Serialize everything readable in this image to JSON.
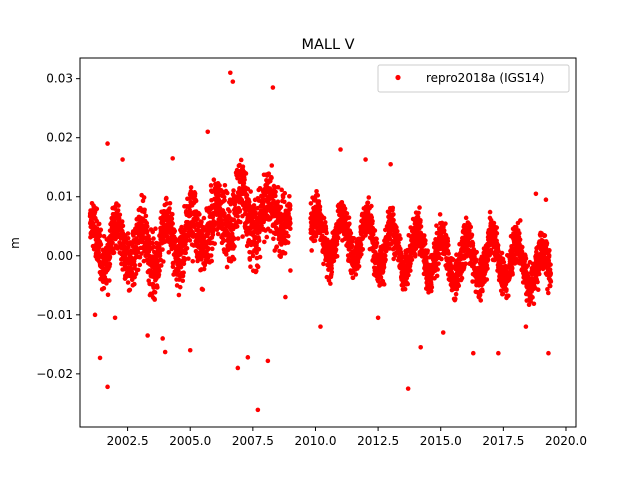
{
  "chart_data": {
    "type": "scatter",
    "title": "MALL V",
    "xlabel": "",
    "ylabel": "m",
    "xlim": [
      2000.6,
      2020.4
    ],
    "ylim": [
      -0.029,
      0.0335
    ],
    "xticks": [
      2002.5,
      2005.0,
      2007.5,
      2010.0,
      2012.5,
      2015.0,
      2017.5,
      2020.0
    ],
    "xtick_labels": [
      "2002.5",
      "2005.0",
      "2007.5",
      "2010.0",
      "2012.5",
      "2015.0",
      "2017.5",
      "2020.0"
    ],
    "yticks": [
      -0.02,
      -0.01,
      0.0,
      0.01,
      0.02,
      0.03
    ],
    "ytick_labels": [
      "−0.02",
      "−0.01",
      "0.00",
      "0.01",
      "0.02",
      "0.03"
    ],
    "grid": false,
    "legend_position": "top-right",
    "series": [
      {
        "name": "repro2018a (IGS14)",
        "color": "#ff0000",
        "marker": "circle",
        "x_range": [
          2001.0,
          2019.4
        ],
        "data_gap": [
          2009.0,
          2009.8
        ],
        "band_profile_x": [
          2001.0,
          2002.0,
          2003.0,
          2004.0,
          2005.0,
          2006.0,
          2006.5,
          2007.0,
          2007.5,
          2008.0,
          2008.5,
          2009.0,
          2009.8,
          2011.0,
          2012.0,
          2013.0,
          2014.0,
          2015.0,
          2016.0,
          2017.0,
          2018.0,
          2019.0,
          2019.4
        ],
        "band_profile_mean": [
          0.002,
          0.002,
          0.001,
          0.002,
          0.004,
          0.005,
          0.007,
          0.008,
          0.007,
          0.006,
          0.01,
          0.003,
          0.004,
          0.003,
          0.003,
          0.001,
          0.001,
          0.0,
          -0.001,
          0.0,
          -0.001,
          -0.002,
          -0.002
        ],
        "band_profile_spread": [
          0.005,
          0.005,
          0.006,
          0.005,
          0.006,
          0.006,
          0.007,
          0.007,
          0.007,
          0.006,
          0.006,
          0.004,
          0.004,
          0.004,
          0.004,
          0.004,
          0.004,
          0.004,
          0.004,
          0.004,
          0.004,
          0.004,
          0.004
        ],
        "outliers": [
          [
            2001.4,
            -0.0173
          ],
          [
            2001.7,
            -0.0222
          ],
          [
            2002.0,
            -0.0105
          ],
          [
            2003.3,
            -0.0135
          ],
          [
            2004.0,
            -0.0163
          ],
          [
            2006.6,
            0.031
          ],
          [
            2006.9,
            -0.019
          ],
          [
            2007.3,
            -0.0172
          ],
          [
            2007.7,
            -0.0261
          ],
          [
            2008.1,
            -0.0178
          ],
          [
            2013.7,
            -0.0225
          ],
          [
            2014.2,
            -0.0155
          ],
          [
            2016.3,
            -0.0165
          ],
          [
            2017.3,
            -0.0165
          ],
          [
            2008.3,
            0.0285
          ],
          [
            2006.7,
            0.0295
          ],
          [
            2001.7,
            0.019
          ],
          [
            2011.0,
            0.018
          ],
          [
            2012.0,
            0.0163
          ],
          [
            2013.0,
            0.0155
          ],
          [
            2018.8,
            0.0105
          ],
          [
            2019.2,
            0.0095
          ],
          [
            2002.3,
            0.0163
          ],
          [
            2004.3,
            0.0165
          ],
          [
            2005.7,
            0.021
          ],
          [
            2001.2,
            -0.01
          ],
          [
            2003.9,
            -0.014
          ],
          [
            2005.0,
            -0.016
          ],
          [
            2010.2,
            -0.012
          ],
          [
            2012.5,
            -0.0105
          ],
          [
            2015.1,
            -0.013
          ],
          [
            2018.4,
            -0.012
          ],
          [
            2019.3,
            -0.0165
          ],
          [
            2008.8,
            -0.007
          ],
          [
            2009.0,
            0.0055
          ],
          [
            2009.0,
            -0.0025
          ]
        ]
      }
    ]
  }
}
